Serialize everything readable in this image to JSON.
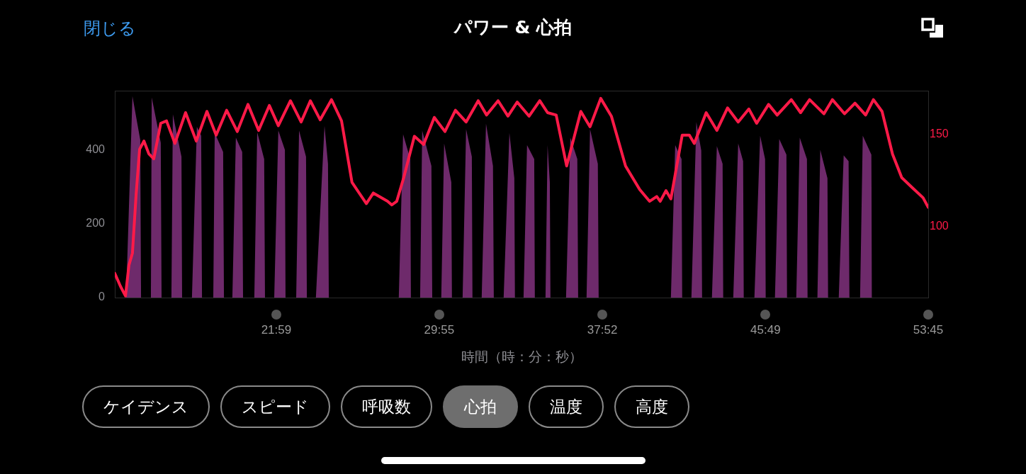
{
  "chart_data": {
    "type": "area",
    "title": "パワー & 心拍",
    "xlabel": "時間（時：分：秒）",
    "annotations": [
      "閉じる",
      "ケイデンス",
      "スピード",
      "呼吸数",
      "心拍",
      "温度",
      "高度"
    ],
    "xticks": [
      {
        "value": 21.98,
        "label": "21:59"
      },
      {
        "value": 29.92,
        "label": "29:55"
      },
      {
        "value": 37.87,
        "label": "37:52"
      },
      {
        "value": 45.82,
        "label": "45:49"
      },
      {
        "value": 53.75,
        "label": "53:45"
      }
    ],
    "xlim": [
      14.11,
      53.75
    ],
    "ylim": [
      0,
      560
    ],
    "yticks": [
      0,
      200,
      400
    ],
    "y2lim": [
      61,
      174
    ],
    "y2ticks": [
      100,
      150
    ],
    "grid": false,
    "legend": false,
    "marker": "none",
    "line_style": "solid",
    "series": [
      {
        "type": "area",
        "color": "#6e2a6b",
        "x": [
          14.66,
          14.97,
          15.35,
          15.39,
          15.87,
          15.91,
          16.35,
          16.39,
          16.87,
          16.94,
          17.36,
          17.39,
          17.87,
          18.11,
          18.32,
          18.36,
          18.91,
          18.98,
          19.39,
          19.43,
          19.84,
          20.01,
          20.32,
          20.36,
          20.91,
          21.05,
          21.39,
          21.43,
          21.88,
          22.08,
          22.4,
          22.43,
          22.95,
          23.09,
          23.43,
          23.47,
          23.91,
          24.33,
          24.5,
          24.54,
          27.95,
          28.16,
          28.51,
          28.54,
          28.99,
          29.09,
          29.54,
          29.58,
          30.02,
          30.16,
          30.51,
          30.54,
          31.06,
          31.23,
          31.51,
          31.54,
          31.99,
          32.2,
          32.54,
          32.58,
          33.06,
          33.34,
          33.58,
          33.61,
          34.03,
          34.2,
          34.55,
          34.58,
          35.1,
          35.2,
          35.31,
          35.34,
          36.1,
          36.31,
          36.65,
          36.69,
          37.1,
          37.27,
          37.65,
          37.69,
          41.21,
          41.42,
          41.73,
          41.76,
          42.21,
          42.45,
          42.69,
          42.73,
          43.21,
          43.45,
          43.73,
          43.76,
          44.25,
          44.49,
          44.73,
          44.76,
          45.28,
          45.56,
          45.8,
          45.83,
          46.28,
          46.49,
          46.84,
          46.87,
          47.32,
          47.49,
          47.84,
          47.87,
          48.35,
          48.49,
          48.84,
          48.87,
          49.39,
          49.63,
          49.87,
          49.91,
          50.43,
          50.56,
          50.98,
          51.01
        ],
        "values": [
          0,
          545,
          427,
          0,
          0,
          542,
          419,
          0,
          0,
          496,
          381,
          0,
          0,
          462,
          438,
          0,
          0,
          446,
          394,
          0,
          0,
          433,
          394,
          0,
          0,
          448,
          375,
          0,
          0,
          452,
          400,
          0,
          0,
          452,
          381,
          0,
          0,
          465,
          362,
          0,
          0,
          442,
          375,
          0,
          0,
          452,
          356,
          0,
          0,
          417,
          312,
          0,
          0,
          456,
          381,
          0,
          0,
          471,
          356,
          0,
          0,
          446,
          323,
          0,
          0,
          413,
          375,
          0,
          0,
          413,
          312,
          0,
          0,
          433,
          375,
          0,
          0,
          456,
          362,
          0,
          0,
          413,
          375,
          0,
          0,
          475,
          398,
          0,
          0,
          410,
          362,
          0,
          0,
          417,
          369,
          0,
          0,
          438,
          375,
          0,
          0,
          429,
          387,
          0,
          0,
          433,
          375,
          0,
          0,
          400,
          323,
          0,
          0,
          385,
          369,
          0,
          0,
          438,
          387,
          0
        ]
      },
      {
        "type": "line",
        "axis": "y2",
        "color": "#ff1a48",
        "x": [
          14.11,
          14.39,
          14.63,
          14.8,
          14.97,
          15.15,
          15.32,
          15.53,
          15.77,
          16.01,
          16.35,
          16.63,
          17.04,
          17.56,
          18.08,
          18.6,
          19.05,
          19.56,
          20.08,
          20.6,
          21.12,
          21.64,
          22.08,
          22.67,
          23.19,
          23.64,
          24.12,
          24.67,
          25.16,
          25.67,
          26.37,
          26.71,
          27.4,
          27.61,
          27.85,
          28.19,
          28.71,
          29.16,
          29.68,
          30.2,
          30.71,
          31.23,
          31.82,
          32.23,
          32.79,
          33.27,
          33.72,
          34.3,
          34.82,
          35.2,
          35.62,
          36.13,
          36.82,
          37.27,
          37.79,
          38.31,
          39.0,
          39.69,
          40.17,
          40.52,
          40.69,
          40.97,
          41.21,
          41.76,
          42.11,
          42.35,
          42.93,
          43.45,
          43.97,
          44.49,
          45.01,
          45.39,
          45.97,
          46.39,
          47.08,
          47.53,
          47.97,
          48.67,
          49.08,
          49.67,
          50.18,
          50.7,
          51.08,
          51.5,
          52.01,
          52.46,
          52.95,
          53.5,
          53.75
        ],
        "values": [
          74.2,
          67.1,
          61.9,
          78.7,
          85.3,
          117.4,
          142.0,
          146.5,
          139.5,
          136.8,
          156.2,
          157.5,
          145.2,
          162.0,
          146.5,
          162.7,
          149.7,
          163.3,
          151.7,
          166.5,
          152.3,
          165.9,
          154.9,
          168.5,
          156.9,
          168.5,
          158.1,
          169.1,
          157.5,
          123.9,
          112.3,
          118.1,
          113.6,
          111.6,
          113.6,
          126.5,
          149.1,
          144.6,
          159.4,
          151.7,
          163.3,
          156.9,
          168.5,
          160.7,
          168.5,
          160.1,
          167.8,
          160.1,
          168.5,
          162.0,
          160.7,
          132.9,
          162.7,
          154.3,
          169.8,
          160.1,
          132.9,
          120.0,
          113.6,
          116.2,
          113.6,
          119.4,
          114.9,
          149.7,
          149.7,
          145.2,
          162.0,
          152.3,
          164.6,
          156.9,
          164.0,
          156.2,
          166.5,
          160.7,
          169.1,
          162.0,
          169.1,
          161.4,
          169.1,
          161.4,
          167.2,
          160.7,
          169.1,
          162.7,
          139.4,
          126.5,
          121.3,
          115.5,
          110.3
        ]
      }
    ]
  }
}
